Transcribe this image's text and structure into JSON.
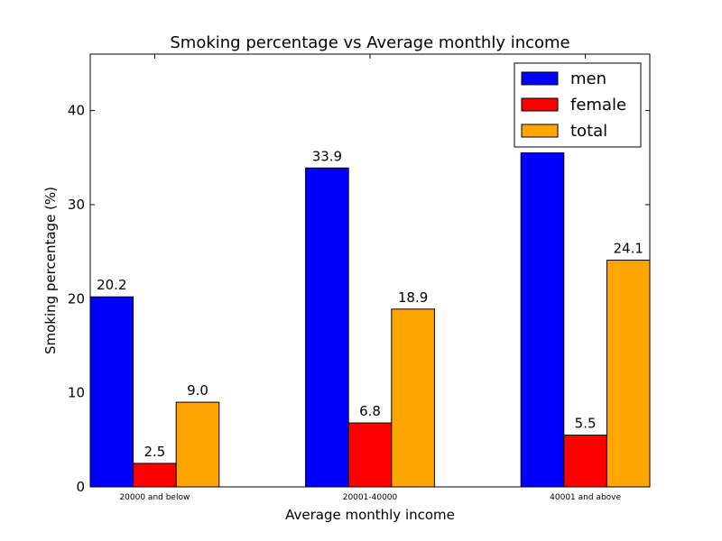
{
  "chart_data": {
    "type": "bar",
    "title": "Smoking percentage vs Average monthly income",
    "xlabel": "Average monthly income",
    "ylabel": "Smoking percentage (%)",
    "categories": [
      "20000 and below",
      "20001-40000",
      "40001 and above"
    ],
    "series": [
      {
        "name": "men",
        "color": "#0000ff",
        "values": [
          20.2,
          33.9,
          35.5
        ],
        "labels": [
          "20.2",
          "33.9",
          ""
        ]
      },
      {
        "name": "female",
        "color": "#ff0000",
        "values": [
          2.5,
          6.8,
          5.5
        ],
        "labels": [
          "2.5",
          "6.8",
          "5.5"
        ]
      },
      {
        "name": "total",
        "color": "#ffa500",
        "values": [
          9.0,
          18.9,
          24.1
        ],
        "labels": [
          "9.0",
          "18.9",
          "24.1"
        ]
      }
    ],
    "ylim": [
      0,
      46
    ],
    "yticks": [
      "0",
      "10",
      "20",
      "30",
      "40"
    ],
    "grid": false,
    "legend_position": "top-right"
  }
}
